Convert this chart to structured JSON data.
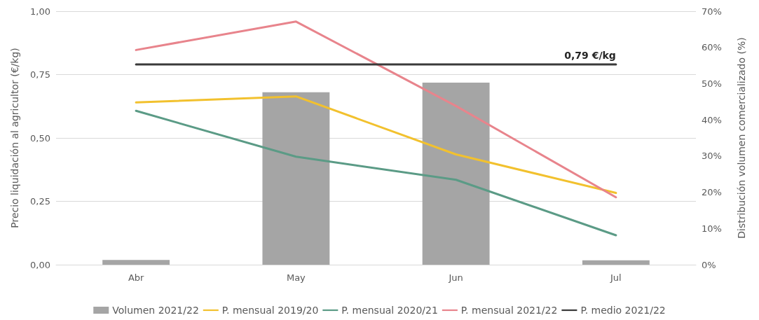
{
  "chart_data": {
    "type": "bar",
    "ylabel": "Precio liquidación al agricultor (€/kg)",
    "y2label": "Distribución volumen comercializado (%)",
    "categories": [
      "Abr",
      "May",
      "Jun",
      "Jul"
    ],
    "series": [
      {
        "name": "Volumen 2021/22",
        "axis": "y2",
        "color": "#a5a5a5",
        "values": [
          1.3,
          47.6,
          50.3,
          1.2
        ]
      },
      {
        "name": "P. mensual 2019/20",
        "type": "line",
        "color": "#f2c12e",
        "values": [
          0.64,
          0.664,
          0.435,
          0.283
        ]
      },
      {
        "name": "P. mensual 2020/21",
        "type": "line",
        "color": "#5b9b86",
        "values": [
          0.607,
          0.426,
          0.335,
          0.116
        ]
      },
      {
        "name": "P. mensual 2021/22",
        "type": "line",
        "color": "#e8848c",
        "values": [
          0.847,
          0.959,
          0.626,
          0.266
        ]
      },
      {
        "name": "P. medio 2021/22",
        "type": "line",
        "color": "#3a3a3a",
        "values": [
          0.79,
          0.79,
          0.79,
          0.79
        ]
      }
    ],
    "annotations": [
      {
        "text": "0,79 €/kg",
        "x": "Jul",
        "y": 0.79
      }
    ],
    "ylim": [
      0,
      1
    ],
    "yticks": [
      {
        "value": 0,
        "label": "0,00"
      },
      {
        "value": 0.25,
        "label": "0,25"
      },
      {
        "value": 0.5,
        "label": "0,50"
      },
      {
        "value": 0.75,
        "label": "0,75"
      },
      {
        "value": 1,
        "label": "1,00"
      }
    ],
    "y2lim": [
      0,
      70
    ],
    "y2ticks": [
      {
        "value": 0,
        "label": "0%"
      },
      {
        "value": 10,
        "label": "10%"
      },
      {
        "value": 20,
        "label": "20%"
      },
      {
        "value": 30,
        "label": "30%"
      },
      {
        "value": 40,
        "label": "40%"
      },
      {
        "value": 50,
        "label": "50%"
      },
      {
        "value": 60,
        "label": "60%"
      },
      {
        "value": 70,
        "label": "70%"
      }
    ],
    "grid": "y",
    "legend": "bottom",
    "marker": "none",
    "line_style": "solid"
  }
}
